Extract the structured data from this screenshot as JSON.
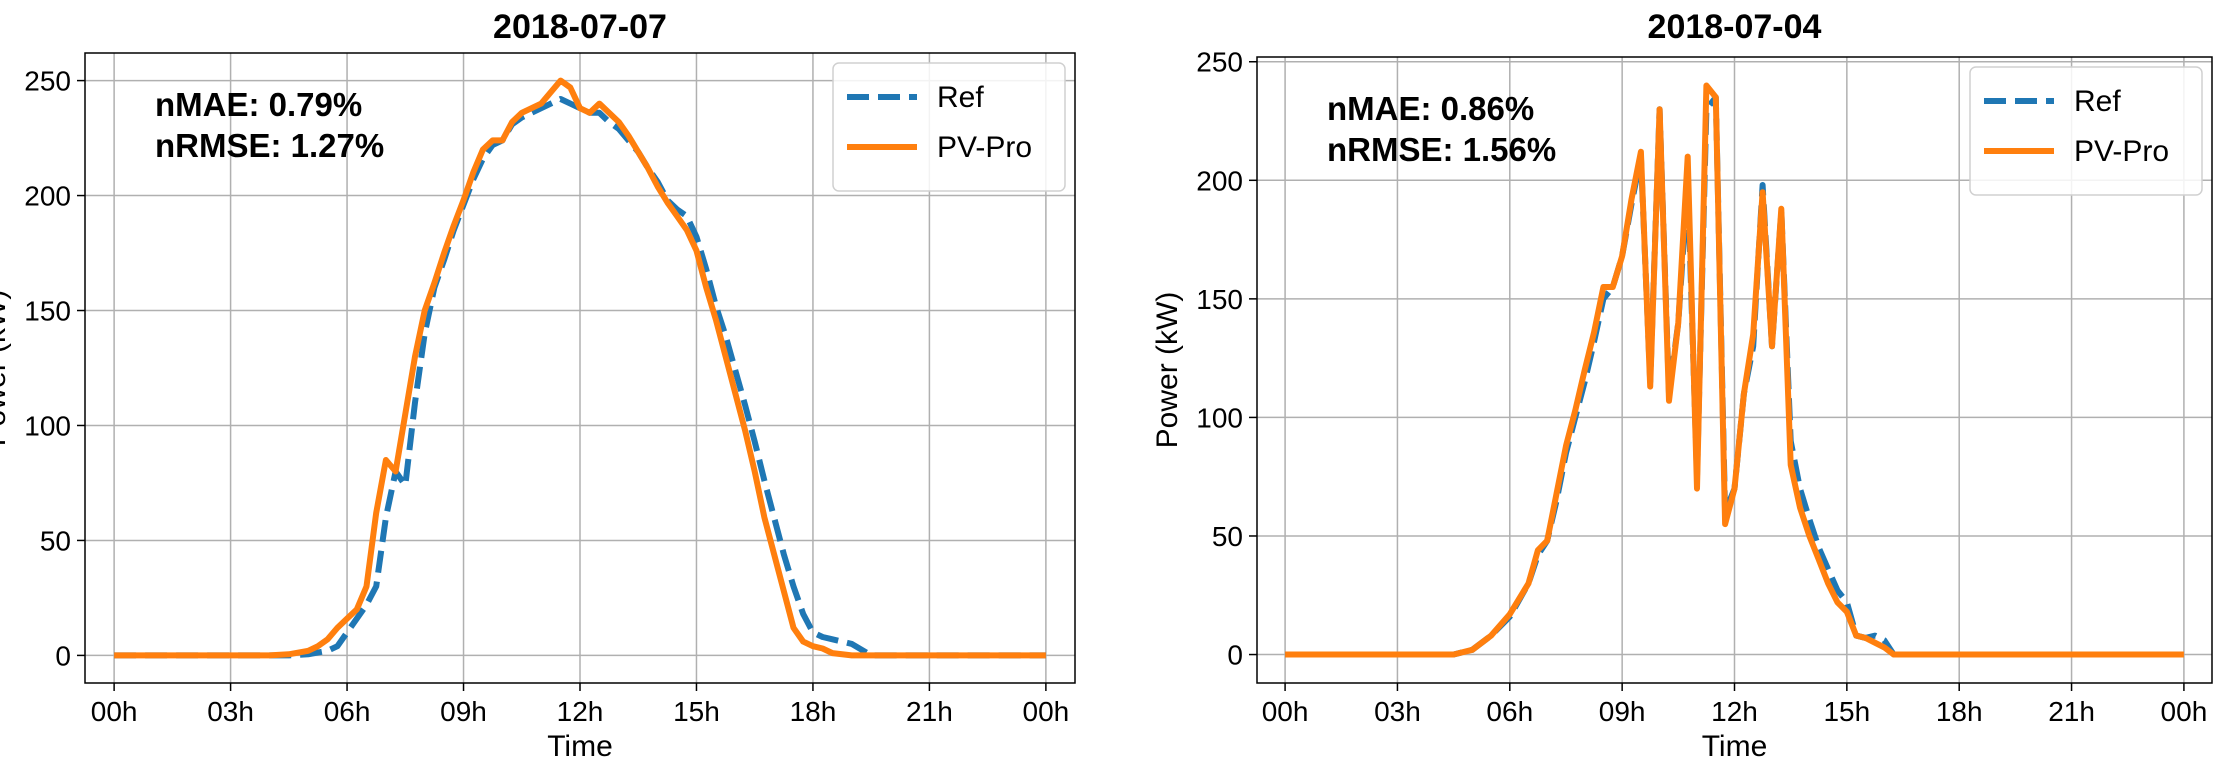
{
  "chart_data": [
    {
      "type": "line",
      "title": "2018-07-07",
      "xlabel": "Time",
      "ylabel": "Power (kW)",
      "xlim": [
        -0.75,
        24.75
      ],
      "ylim": [
        -12,
        262
      ],
      "xticks": [
        0,
        3,
        6,
        9,
        12,
        15,
        18,
        21,
        24
      ],
      "xtick_labels": [
        "00h",
        "03h",
        "06h",
        "09h",
        "12h",
        "15h",
        "18h",
        "21h",
        "00h"
      ],
      "yticks": [
        0,
        50,
        100,
        150,
        200,
        250
      ],
      "ytick_labels": [
        "0",
        "50",
        "100",
        "150",
        "200",
        "250"
      ],
      "grid": true,
      "legend_position": "top-right",
      "annotations": [
        "nMAE: 0.79%",
        "nRMSE: 1.27%"
      ],
      "series": [
        {
          "name": "Ref",
          "color": "#1f77b4",
          "style": "dashed",
          "x": [
            0,
            4.5,
            5,
            5.5,
            5.75,
            6,
            6.25,
            6.5,
            6.75,
            7,
            7.25,
            7.5,
            7.75,
            8,
            8.25,
            8.5,
            8.75,
            9,
            9.25,
            9.5,
            9.75,
            10,
            10.25,
            10.5,
            10.75,
            11,
            11.25,
            11.5,
            11.75,
            12,
            12.25,
            12.5,
            12.75,
            13,
            13.25,
            13.5,
            13.75,
            14,
            14.25,
            14.5,
            14.75,
            15,
            15.25,
            15.5,
            15.75,
            16,
            16.25,
            16.5,
            16.75,
            17,
            17.25,
            17.5,
            17.75,
            18,
            18.25,
            18.5,
            19,
            19.5,
            19.75,
            20,
            24
          ],
          "y": [
            0,
            0,
            0.5,
            2,
            4,
            10,
            16,
            22,
            30,
            60,
            80,
            74,
            110,
            140,
            160,
            172,
            185,
            196,
            207,
            216,
            222,
            224,
            231,
            234,
            236,
            238,
            240,
            242,
            240,
            238,
            236,
            236,
            232,
            229,
            224,
            219,
            212,
            206,
            198,
            194,
            191,
            182,
            168,
            152,
            139,
            124,
            109,
            93,
            76,
            60,
            44,
            30,
            18,
            10,
            8,
            7,
            5,
            0,
            0,
            0,
            0
          ]
        },
        {
          "name": "PV-Pro",
          "color": "#ff7f0e",
          "style": "solid",
          "x": [
            0,
            4,
            4.5,
            5,
            5.25,
            5.5,
            5.75,
            6,
            6.25,
            6.5,
            6.75,
            7,
            7.25,
            7.5,
            7.75,
            8,
            8.25,
            8.5,
            8.75,
            9,
            9.25,
            9.5,
            9.75,
            10,
            10.25,
            10.5,
            10.75,
            11,
            11.25,
            11.5,
            11.75,
            12,
            12.25,
            12.5,
            12.75,
            13,
            13.25,
            13.5,
            13.75,
            14,
            14.25,
            14.5,
            14.75,
            15,
            15.25,
            15.5,
            15.75,
            16,
            16.25,
            16.5,
            16.75,
            17,
            17.25,
            17.5,
            17.75,
            18,
            18.25,
            18.5,
            19,
            19.5,
            19.75,
            20,
            24
          ],
          "y": [
            0,
            0,
            0.5,
            2,
            4,
            7,
            12,
            16,
            20,
            30,
            62,
            85,
            80,
            105,
            130,
            150,
            162,
            175,
            187,
            198,
            210,
            220,
            224,
            224,
            232,
            236,
            238,
            240,
            245,
            250,
            247,
            238,
            236,
            240,
            236,
            232,
            226,
            219,
            212,
            204,
            197,
            191,
            185,
            176,
            160,
            146,
            130,
            114,
            98,
            80,
            60,
            44,
            28,
            12,
            6,
            4,
            3,
            1,
            0,
            0,
            0,
            0,
            0
          ]
        }
      ]
    },
    {
      "type": "line",
      "title": "2018-07-04",
      "xlabel": "Time",
      "ylabel": "Power (kW)",
      "xlim": [
        -0.75,
        24.75
      ],
      "ylim": [
        -12,
        252
      ],
      "xticks": [
        0,
        3,
        6,
        9,
        12,
        15,
        18,
        21,
        24
      ],
      "xtick_labels": [
        "00h",
        "03h",
        "06h",
        "09h",
        "12h",
        "15h",
        "18h",
        "21h",
        "00h"
      ],
      "yticks": [
        0,
        50,
        100,
        150,
        200,
        250
      ],
      "ytick_labels": [
        "0",
        "50",
        "100",
        "150",
        "200",
        "250"
      ],
      "grid": true,
      "legend_position": "top-right",
      "annotations": [
        "nMAE: 0.86%",
        "nRMSE: 1.56%"
      ],
      "series": [
        {
          "name": "Ref",
          "color": "#1f77b4",
          "style": "dashed",
          "x": [
            0,
            4.5,
            5,
            5.5,
            6,
            6.5,
            6.75,
            7,
            7.25,
            7.5,
            7.75,
            8,
            8.25,
            8.5,
            8.75,
            9,
            9.25,
            9.5,
            9.75,
            10,
            10.25,
            10.5,
            10.75,
            11,
            11.25,
            11.5,
            11.75,
            12,
            12.25,
            12.5,
            12.75,
            13,
            13.25,
            13.5,
            13.75,
            14,
            14.25,
            14.5,
            14.75,
            15,
            15.25,
            15.5,
            15.75,
            16,
            16.25,
            16.5,
            16.75,
            17,
            17.25,
            17.5,
            18,
            18.5,
            19,
            19.5,
            20,
            24
          ],
          "y": [
            0,
            0,
            2,
            8,
            16,
            30,
            42,
            48,
            65,
            85,
            100,
            115,
            132,
            150,
            155,
            168,
            190,
            210,
            115,
            230,
            110,
            140,
            200,
            75,
            230,
            235,
            60,
            70,
            110,
            130,
            198,
            130,
            187,
            90,
            70,
            57,
            45,
            36,
            27,
            22,
            8,
            7,
            8,
            6,
            0,
            0,
            0,
            0,
            0,
            0,
            0,
            0,
            0,
            0,
            0,
            0
          ],
          "note": ""
        },
        {
          "name": "PV-Pro",
          "color": "#ff7f0e",
          "style": "solid",
          "x": [
            0,
            4.5,
            5,
            5.5,
            6,
            6.5,
            6.75,
            7,
            7.25,
            7.5,
            7.75,
            8,
            8.25,
            8.5,
            8.75,
            9,
            9.25,
            9.5,
            9.75,
            10,
            10.25,
            10.5,
            10.75,
            11,
            11.25,
            11.5,
            11.75,
            12,
            12.25,
            12.5,
            12.75,
            13,
            13.25,
            13.5,
            13.75,
            14,
            14.25,
            14.5,
            14.75,
            15,
            15.25,
            15.5,
            15.75,
            16,
            16.25,
            16.5,
            16.75,
            17,
            17.5,
            18,
            18.5,
            19,
            19.5,
            20,
            24
          ],
          "y": [
            0,
            0,
            2,
            8,
            17,
            30,
            44,
            48,
            68,
            88,
            103,
            120,
            136,
            155,
            155,
            168,
            192,
            212,
            113,
            230,
            107,
            140,
            210,
            70,
            240,
            235,
            55,
            70,
            110,
            135,
            195,
            130,
            188,
            80,
            62,
            50,
            40,
            30,
            22,
            18,
            8,
            7,
            5,
            3,
            0,
            0,
            0,
            0,
            0,
            0,
            0,
            0,
            0,
            0,
            0
          ]
        }
      ]
    }
  ],
  "legend_labels": [
    "Ref",
    "PV-Pro"
  ]
}
